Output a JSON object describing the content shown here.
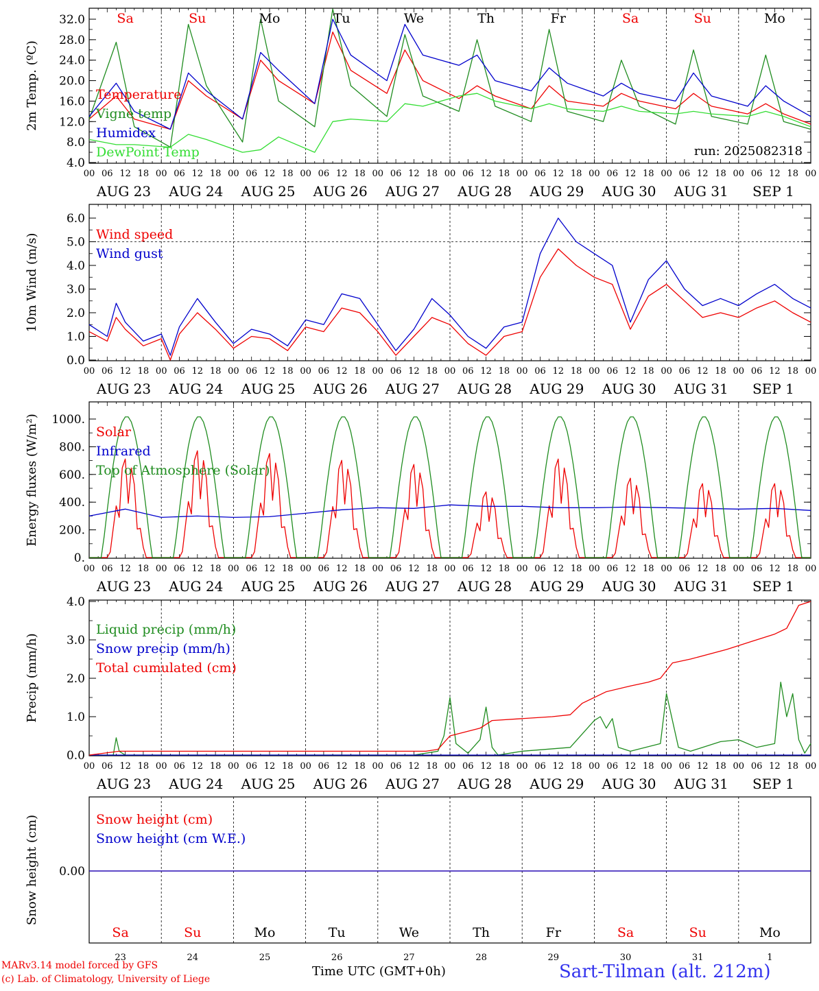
{
  "run_label": "run: 2025082318",
  "time_axis": {
    "hour_ticks": [
      "00",
      "06",
      "12",
      "18"
    ],
    "date_labels": [
      "AUG 23",
      "AUG 24",
      "AUG 25",
      "AUG 26",
      "AUG 27",
      "AUG 28",
      "AUG 29",
      "AUG 30",
      "AUG 31",
      "SEP  1"
    ],
    "day_names": [
      "Sa",
      "Su",
      "Mo",
      "Tu",
      "We",
      "Th",
      "Fr",
      "Sa",
      "Su",
      "Mo"
    ],
    "day_numbers": [
      "23",
      "24",
      "25",
      "26",
      "27",
      "28",
      "29",
      "30",
      "31",
      "1"
    ],
    "weekend_color": "#ee0000",
    "weekday_color": "#000000",
    "weekend_flags": [
      true,
      true,
      false,
      false,
      false,
      false,
      false,
      true,
      true,
      false
    ]
  },
  "chart_data": [
    {
      "type": "line",
      "ylabel": "2m Temp. (ºC)",
      "ylim": [
        4,
        34
      ],
      "y_ticks": [
        "32.0",
        "28.0",
        "24.0",
        "20.0",
        "16.0",
        "12.0",
        "8.0",
        "4.0"
      ],
      "x_range_hours": [
        0,
        240
      ],
      "series": [
        {
          "name": "Temperature",
          "color": "#ee0000",
          "x": [
            0,
            9,
            15,
            27,
            33,
            39,
            51,
            57,
            63,
            75,
            81,
            87,
            99,
            105,
            111,
            123,
            129,
            135,
            147,
            153,
            159,
            171,
            177,
            183,
            195,
            201,
            207,
            219,
            225,
            231,
            240
          ],
          "values": [
            12.5,
            17,
            12.5,
            10.5,
            20,
            17,
            12.5,
            24,
            20,
            15.5,
            29.5,
            22,
            17.5,
            26,
            20,
            16.5,
            19,
            17,
            14.5,
            19,
            16,
            15,
            17.5,
            16,
            14.5,
            17.5,
            15,
            13.5,
            15.5,
            13.5,
            11.5
          ]
        },
        {
          "name": "Vigne temp",
          "color": "#1f8c1f",
          "x": [
            0,
            9,
            15,
            27,
            33,
            39,
            51,
            57,
            63,
            75,
            81,
            87,
            99,
            105,
            111,
            123,
            129,
            135,
            147,
            153,
            159,
            171,
            177,
            183,
            195,
            201,
            207,
            219,
            225,
            231,
            240
          ],
          "values": [
            12.5,
            27.5,
            11,
            7,
            31,
            19,
            8,
            32,
            16,
            11,
            34,
            19,
            13,
            29,
            17,
            14,
            28,
            15,
            12,
            30,
            14,
            12,
            24,
            15,
            11.5,
            26,
            13,
            11.5,
            25,
            12,
            10.5
          ]
        },
        {
          "name": "Humidex",
          "color": "#0000cc",
          "x": [
            0,
            9,
            15,
            27,
            33,
            39,
            51,
            57,
            63,
            75,
            81,
            87,
            99,
            105,
            111,
            123,
            129,
            135,
            147,
            153,
            159,
            171,
            177,
            183,
            195,
            201,
            207,
            219,
            225,
            231,
            240
          ],
          "values": [
            13,
            19.5,
            14,
            10.5,
            21.5,
            18,
            12.5,
            25.5,
            22,
            15.5,
            32,
            25,
            20,
            31,
            25,
            23,
            25,
            20,
            18,
            22.5,
            19.5,
            17,
            19.5,
            17.5,
            16,
            21.5,
            17,
            15,
            19,
            16,
            13
          ]
        },
        {
          "name": "DewPoint Temp",
          "color": "#33dd33",
          "x": [
            0,
            9,
            15,
            27,
            33,
            39,
            51,
            57,
            63,
            75,
            81,
            87,
            99,
            105,
            111,
            123,
            129,
            135,
            147,
            153,
            159,
            171,
            177,
            183,
            195,
            201,
            207,
            219,
            225,
            231,
            240
          ],
          "values": [
            8.5,
            7.5,
            7.5,
            7,
            9.5,
            8.5,
            6,
            6.5,
            9,
            6,
            12,
            12.5,
            12,
            15.5,
            15,
            17,
            17.5,
            16,
            14.5,
            15.5,
            14.5,
            14,
            15,
            14,
            13.5,
            14,
            13.5,
            13,
            14,
            13,
            11
          ]
        }
      ]
    },
    {
      "type": "line",
      "ylabel": "10m Wind (m/s)",
      "ylim": [
        0,
        6.5
      ],
      "y_ticks": [
        "6.0",
        "5.0",
        "4.0",
        "3.0",
        "2.0",
        "1.0",
        "0.0"
      ],
      "x_range_hours": [
        0,
        240
      ],
      "series": [
        {
          "name": "Wind speed",
          "color": "#ee0000",
          "x": [
            0,
            6,
            9,
            12,
            18,
            24,
            27,
            30,
            36,
            42,
            48,
            54,
            60,
            66,
            72,
            78,
            84,
            90,
            96,
            102,
            108,
            114,
            120,
            126,
            132,
            138,
            144,
            150,
            156,
            162,
            168,
            174,
            180,
            186,
            192,
            198,
            204,
            210,
            216,
            222,
            228,
            234,
            240
          ],
          "values": [
            1.2,
            0.8,
            1.8,
            1.3,
            0.6,
            0.9,
            0,
            1.1,
            2.0,
            1.3,
            0.5,
            1.0,
            0.9,
            0.4,
            1.4,
            1.2,
            2.2,
            2.0,
            1.2,
            0.2,
            1.0,
            1.8,
            1.5,
            0.7,
            0.2,
            1.0,
            1.2,
            3.5,
            4.7,
            4.0,
            3.5,
            3.2,
            1.3,
            2.7,
            3.2,
            2.5,
            1.8,
            2.0,
            1.8,
            2.2,
            2.5,
            2.0,
            1.6
          ]
        },
        {
          "name": "Wind gust",
          "color": "#0000cc",
          "x": [
            0,
            6,
            9,
            12,
            18,
            24,
            27,
            30,
            36,
            42,
            48,
            54,
            60,
            66,
            72,
            78,
            84,
            90,
            96,
            102,
            108,
            114,
            120,
            126,
            132,
            138,
            144,
            150,
            156,
            162,
            168,
            174,
            180,
            186,
            192,
            198,
            204,
            210,
            216,
            222,
            228,
            234,
            240
          ],
          "values": [
            1.5,
            1.0,
            2.4,
            1.6,
            0.8,
            1.1,
            0.2,
            1.4,
            2.6,
            1.6,
            0.7,
            1.3,
            1.1,
            0.6,
            1.7,
            1.5,
            2.8,
            2.6,
            1.5,
            0.4,
            1.3,
            2.6,
            1.9,
            1.0,
            0.5,
            1.4,
            1.6,
            4.5,
            6.0,
            5.0,
            4.5,
            4.0,
            1.6,
            3.4,
            4.2,
            3.0,
            2.3,
            2.6,
            2.3,
            2.8,
            3.2,
            2.6,
            2.2
          ]
        }
      ]
    },
    {
      "type": "line",
      "ylabel": "Energy fluxes (W/m²)",
      "ylim": [
        0,
        1100
      ],
      "y_ticks": [
        "1000.",
        "800.",
        "600.",
        "400.",
        "200.",
        "0."
      ],
      "x_range_hours": [
        0,
        240
      ],
      "series": [
        {
          "name": "Solar",
          "color": "#ee0000",
          "peaks": [
            720,
            780,
            760,
            710,
            680,
            480,
            720,
            580,
            540,
            540
          ]
        },
        {
          "name": "Infrared",
          "color": "#0000cc",
          "x": [
            0,
            12,
            24,
            36,
            48,
            60,
            72,
            84,
            96,
            108,
            120,
            132,
            144,
            156,
            168,
            180,
            192,
            204,
            216,
            228,
            240
          ],
          "values": [
            300,
            350,
            290,
            300,
            290,
            295,
            320,
            345,
            360,
            355,
            380,
            370,
            370,
            360,
            360,
            365,
            360,
            355,
            350,
            355,
            340
          ]
        },
        {
          "name": "Top of Atmosphere (Solar)",
          "color": "#1f8c1f",
          "peak": 1020
        }
      ]
    },
    {
      "type": "line",
      "ylabel": "Precip (mm/h)",
      "ylim": [
        0,
        4
      ],
      "y_ticks": [
        "4.0",
        "3.0",
        "2.0",
        "1.0",
        "0.0"
      ],
      "x_range_hours": [
        0,
        240
      ],
      "series": [
        {
          "name": "Liquid precip (mm/h)",
          "color": "#1f8c1f",
          "x": [
            0,
            8,
            9,
            10,
            12,
            108,
            116,
            118,
            120,
            122,
            126,
            130,
            132,
            134,
            136,
            140,
            144,
            160,
            168,
            170,
            172,
            174,
            176,
            180,
            190,
            192,
            196,
            200,
            210,
            216,
            222,
            228,
            230,
            232,
            234,
            236,
            238,
            240
          ],
          "values": [
            0,
            0,
            0.45,
            0.1,
            0,
            0,
            0.1,
            0.5,
            1.5,
            0.3,
            0.05,
            0.4,
            1.25,
            0.2,
            0,
            0.05,
            0.1,
            0.2,
            0.9,
            1.0,
            0.7,
            0.95,
            0.2,
            0.1,
            0.3,
            1.6,
            0.2,
            0.1,
            0.35,
            0.4,
            0.2,
            0.3,
            1.9,
            1.0,
            1.6,
            0.4,
            0.05,
            0.3
          ]
        },
        {
          "name": "Snow precip (mm/h)",
          "color": "#0000cc",
          "x": [
            0,
            240
          ],
          "values": [
            0,
            0
          ]
        },
        {
          "name": "Total cumulated (cm)",
          "color": "#ee0000",
          "x": [
            0,
            10,
            112,
            116,
            120,
            130,
            134,
            144,
            154,
            160,
            164,
            172,
            180,
            186,
            190,
            194,
            200,
            212,
            220,
            228,
            232,
            234,
            236,
            240
          ],
          "values": [
            0,
            0.1,
            0.1,
            0.15,
            0.5,
            0.7,
            0.9,
            0.95,
            1.0,
            1.05,
            1.35,
            1.65,
            1.8,
            1.9,
            2.0,
            2.4,
            2.5,
            2.75,
            2.95,
            3.15,
            3.3,
            3.6,
            3.9,
            4.0
          ]
        }
      ]
    },
    {
      "type": "line",
      "ylabel": "Snow height (cm)",
      "y_ticks": [
        "0.00"
      ],
      "x_range_hours": [
        0,
        240
      ],
      "series": [
        {
          "name": "Snow height (cm)",
          "color": "#ee0000",
          "x": [
            0,
            240
          ],
          "values": [
            0,
            0
          ]
        },
        {
          "name": "Snow height (cm W.E.)",
          "color": "#0000cc",
          "x": [
            0,
            240
          ],
          "values": [
            0,
            0
          ]
        }
      ]
    }
  ],
  "footer": {
    "model_line": "MARv3.14 model forced by GFS",
    "copyright_line": "(c) Lab. of Climatology, University of Liege",
    "time_label": "Time UTC (GMT+0h)",
    "station": "Sart-Tilman (alt. 212m)"
  }
}
